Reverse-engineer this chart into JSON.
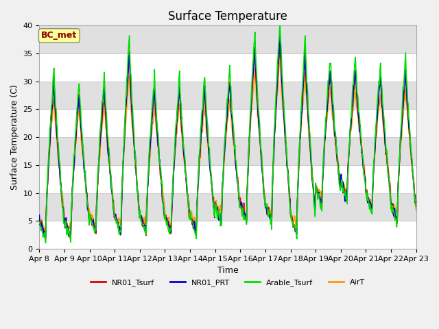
{
  "title": "Surface Temperature",
  "xlabel": "Time",
  "ylabel": "Surface Temperature (C)",
  "ylim": [
    0,
    40
  ],
  "xlim": [
    0,
    360
  ],
  "fig_bg": "#f0f0f0",
  "plot_bg": "#e8e8e8",
  "series": {
    "NR01_Tsurf": {
      "color": "#dd0000",
      "linewidth": 1.2
    },
    "NR01_PRT": {
      "color": "#0000cc",
      "linewidth": 1.2
    },
    "Arable_Tsurf": {
      "color": "#00dd00",
      "linewidth": 1.2
    },
    "AirT": {
      "color": "#ff9900",
      "linewidth": 1.2
    }
  },
  "xtick_labels": [
    "Apr 8",
    "Apr 9",
    "Apr 10",
    "Apr 11",
    "Apr 12",
    "Apr 13",
    "Apr 14",
    "Apr 15",
    "Apr 16",
    "Apr 17",
    "Apr 18",
    "Apr 19",
    "Apr 20",
    "Apr 21",
    "Apr 22",
    "Apr 23"
  ],
  "xtick_positions": [
    0,
    24,
    48,
    72,
    96,
    120,
    144,
    168,
    192,
    216,
    240,
    264,
    288,
    312,
    336,
    360
  ],
  "ytick_values": [
    0,
    5,
    10,
    15,
    20,
    25,
    30,
    35,
    40
  ],
  "annotation_text": "BC_met",
  "annotation_color": "#880000",
  "annotation_bg": "#ffff99",
  "title_fontsize": 12,
  "axis_fontsize": 9,
  "tick_fontsize": 8
}
